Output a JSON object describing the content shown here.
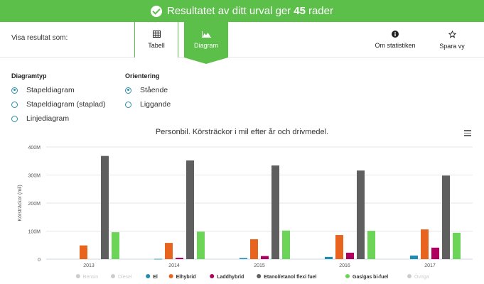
{
  "banner": {
    "text": "Resultatet av ditt urval ger",
    "count": "45",
    "suffix": "rader"
  },
  "toolbar": {
    "visa_label": "Visa resultat som:",
    "tabell_label": "Tabell",
    "diagram_label": "Diagram",
    "stat_label": "Om statistiken",
    "spara_label": "Spara vy"
  },
  "options": {
    "typ_title": "Diagramtyp",
    "typ_items": [
      "Stapeldiagram",
      "Stapeldiagram (staplad)",
      "Linjediagram"
    ],
    "typ_selected": 0,
    "ori_title": "Orientering",
    "ori_items": [
      "Stående",
      "Liggande"
    ],
    "ori_selected": 0
  },
  "chart_data": {
    "type": "bar",
    "title": "Personbil. Körsträckor i mil efter år och drivmedel.",
    "ylabel": "Körsträckor (mil)",
    "xlabel": "",
    "ylim": [
      0,
      400000000
    ],
    "yticks": [
      0,
      100000000,
      200000000,
      300000000,
      400000000
    ],
    "ytick_labels": [
      "0",
      "100M",
      "200M",
      "300M",
      "400M"
    ],
    "categories": [
      "2013",
      "2014",
      "2015",
      "2016",
      "2017"
    ],
    "series": [
      {
        "name": "Bensin",
        "color": "#c8c8c8",
        "visible": false,
        "values": [
          0,
          0,
          0,
          0,
          0
        ]
      },
      {
        "name": "Diesel",
        "color": "#c8c8c8",
        "visible": false,
        "values": [
          0,
          0,
          0,
          0,
          0
        ]
      },
      {
        "name": "El",
        "color": "#1f8cb0",
        "visible": true,
        "values": [
          0,
          1000000,
          4000000,
          8000000,
          13000000
        ]
      },
      {
        "name": "Elhybrid",
        "color": "#e8641e",
        "visible": true,
        "values": [
          49000000,
          58000000,
          71000000,
          86000000,
          106000000
        ]
      },
      {
        "name": "Laddhybrid",
        "color": "#b0005f",
        "visible": true,
        "values": [
          0,
          5000000,
          11000000,
          23000000,
          41000000
        ]
      },
      {
        "name": "Etanol/etanol flexi fuel",
        "color": "#5f5f5f",
        "visible": true,
        "values": [
          368000000,
          352000000,
          334000000,
          316000000,
          298000000
        ]
      },
      {
        "name": "Gas/gas bi-fuel",
        "color": "#6cd456",
        "visible": true,
        "values": [
          96000000,
          98000000,
          102000000,
          101000000,
          94000000
        ]
      },
      {
        "name": "Övriga",
        "color": "#c8c8c8",
        "visible": false,
        "values": [
          0,
          0,
          0,
          0,
          0
        ]
      }
    ],
    "legend_position": "bottom",
    "grid": true
  }
}
